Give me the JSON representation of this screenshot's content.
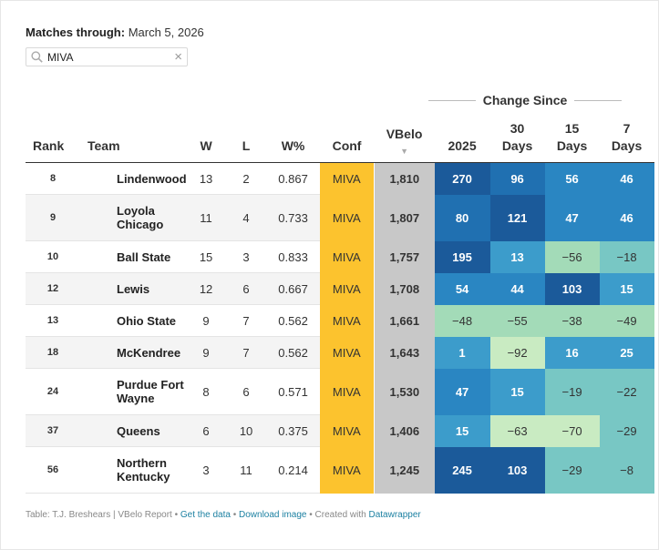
{
  "header": {
    "matches_label": "Matches through:",
    "matches_date": "March 5, 2026"
  },
  "search": {
    "value": "MIVA",
    "clear_icon": "×"
  },
  "change_since_label": "Change Since",
  "columns": {
    "rank": "Rank",
    "team": "Team",
    "w": "W",
    "l": "L",
    "wpct": "W%",
    "conf": "Conf",
    "vbelo": "VBelo",
    "sort_indicator": "▼",
    "c2025": "2025",
    "c30_a": "30",
    "c30_b": "Days",
    "c15_a": "15",
    "c15_b": "Days",
    "c7_a": "7",
    "c7_b": "Days"
  },
  "rows": [
    {
      "rank": "8",
      "team": "Lindenwood",
      "w": "13",
      "l": "2",
      "wpct": "0.867",
      "conf": "MIVA",
      "vbelo": "1,810",
      "c2025": "270",
      "c30": "96",
      "c15": "56",
      "c7": "46"
    },
    {
      "rank": "9",
      "team": "Loyola Chicago",
      "w": "11",
      "l": "4",
      "wpct": "0.733",
      "conf": "MIVA",
      "vbelo": "1,807",
      "c2025": "80",
      "c30": "121",
      "c15": "47",
      "c7": "46"
    },
    {
      "rank": "10",
      "team": "Ball State",
      "w": "15",
      "l": "3",
      "wpct": "0.833",
      "conf": "MIVA",
      "vbelo": "1,757",
      "c2025": "195",
      "c30": "13",
      "c15": "−56",
      "c7": "−18"
    },
    {
      "rank": "12",
      "team": "Lewis",
      "w": "12",
      "l": "6",
      "wpct": "0.667",
      "conf": "MIVA",
      "vbelo": "1,708",
      "c2025": "54",
      "c30": "44",
      "c15": "103",
      "c7": "15"
    },
    {
      "rank": "13",
      "team": "Ohio State",
      "w": "9",
      "l": "7",
      "wpct": "0.562",
      "conf": "MIVA",
      "vbelo": "1,661",
      "c2025": "−48",
      "c30": "−55",
      "c15": "−38",
      "c7": "−49"
    },
    {
      "rank": "18",
      "team": "McKendree",
      "w": "9",
      "l": "7",
      "wpct": "0.562",
      "conf": "MIVA",
      "vbelo": "1,643",
      "c2025": "1",
      "c30": "−92",
      "c15": "16",
      "c7": "25"
    },
    {
      "rank": "24",
      "team": "Purdue Fort Wayne",
      "w": "8",
      "l": "6",
      "wpct": "0.571",
      "conf": "MIVA",
      "vbelo": "1,530",
      "c2025": "47",
      "c30": "15",
      "c15": "−19",
      "c7": "−22"
    },
    {
      "rank": "37",
      "team": "Queens",
      "w": "6",
      "l": "10",
      "wpct": "0.375",
      "conf": "MIVA",
      "vbelo": "1,406",
      "c2025": "15",
      "c30": "−63",
      "c15": "−70",
      "c7": "−29"
    },
    {
      "rank": "56",
      "team": "Northern Kentucky",
      "w": "3",
      "l": "11",
      "wpct": "0.214",
      "conf": "MIVA",
      "vbelo": "1,245",
      "c2025": "245",
      "c30": "103",
      "c15": "−29",
      "c7": "−8"
    }
  ],
  "heat_colors": {
    "darkest": "#1b5a9a",
    "dark": "#2070b1",
    "mid": "#2a86c2",
    "medium": "#3c9ccb",
    "light": "#78c7c4",
    "lighter": "#a3dbb8",
    "palest": "#c9ebc2"
  },
  "footer": {
    "credit": "Table: T.J. Breshears | VBelo Report • ",
    "get_data": "Get the data",
    "sep1": " • ",
    "download": "Download image",
    "sep2": " • Created with ",
    "datawrapper": "Datawrapper"
  }
}
